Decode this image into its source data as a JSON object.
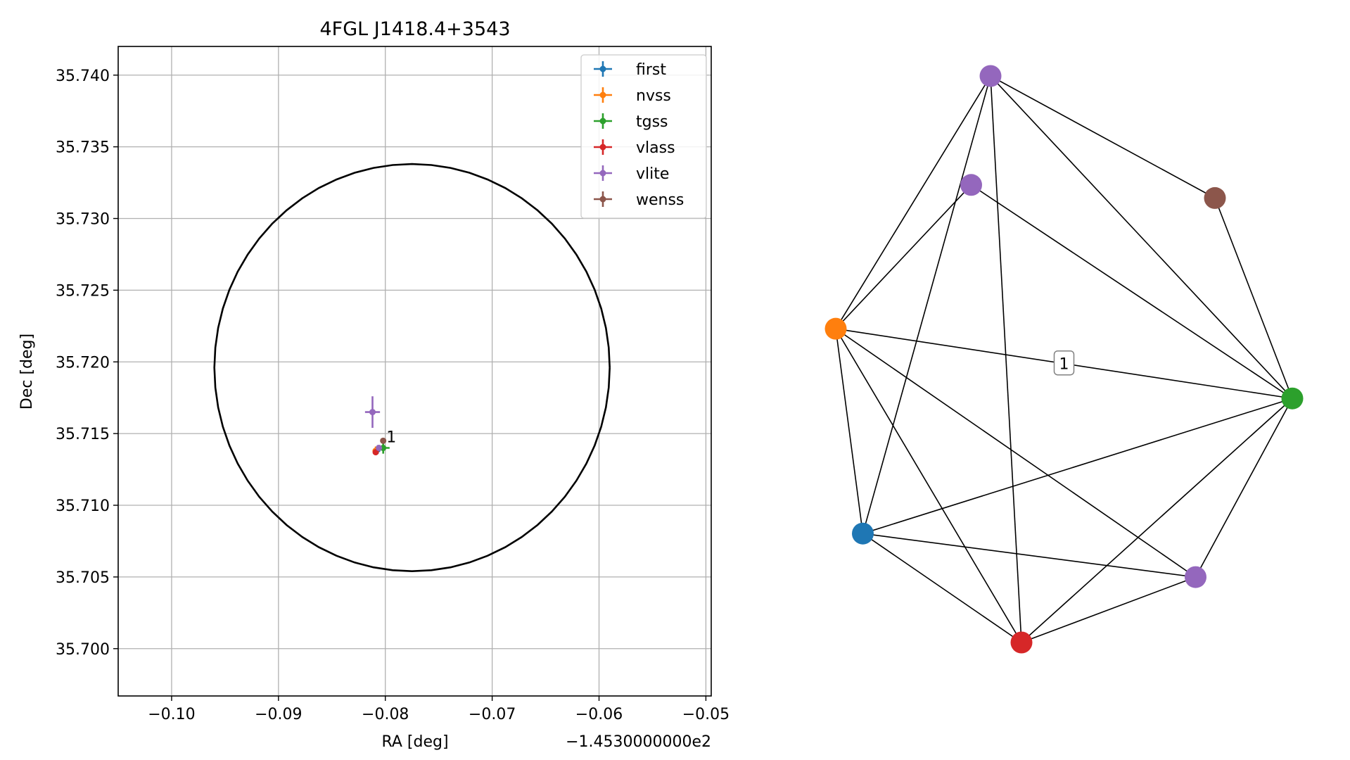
{
  "chart_data": [
    {
      "type": "scatter",
      "title": "4FGL J1418.4+3543",
      "xlabel": "RA [deg]",
      "ylabel": "Dec [deg]",
      "x_offset_text": "−1.4530000000e2",
      "xlim": [
        -0.105,
        -0.0495
      ],
      "ylim": [
        35.6967,
        35.742
      ],
      "x_ticks": [
        -0.1,
        -0.09,
        -0.08,
        -0.07,
        -0.06,
        -0.05
      ],
      "x_tick_labels": [
        "−0.10",
        "−0.09",
        "−0.08",
        "−0.07",
        "−0.06",
        "−0.05"
      ],
      "y_ticks": [
        35.7,
        35.705,
        35.71,
        35.715,
        35.72,
        35.725,
        35.73,
        35.735,
        35.74
      ],
      "y_tick_labels": [
        "35.700",
        "35.705",
        "35.710",
        "35.715",
        "35.720",
        "35.725",
        "35.730",
        "35.735",
        "35.740"
      ],
      "grid": true,
      "legend_position": "top-right",
      "circle": {
        "center": [
          -0.0775,
          35.7196
        ],
        "radius_x": 0.0185,
        "radius_y": 0.0142,
        "color": "#000000"
      },
      "series": [
        {
          "name": "first",
          "color": "#1f77b4",
          "points": [
            {
              "x": -0.0807,
              "y": 35.7139,
              "xerr": 0.0002,
              "yerr": 0.0003
            }
          ]
        },
        {
          "name": "nvss",
          "color": "#ff7f0e",
          "points": [
            {
              "x": -0.0809,
              "y": 35.7138,
              "xerr": 0.0003,
              "yerr": 0.0003
            }
          ]
        },
        {
          "name": "tgss",
          "color": "#2ca02c",
          "points": [
            {
              "x": -0.0802,
              "y": 35.714,
              "xerr": 0.0006,
              "yerr": 0.0004
            }
          ]
        },
        {
          "name": "vlass",
          "color": "#d62728",
          "points": [
            {
              "x": -0.0809,
              "y": 35.7137,
              "xerr": 0.0001,
              "yerr": 0.0001
            }
          ]
        },
        {
          "name": "vlite",
          "color": "#9467bd",
          "points": [
            {
              "x": -0.0812,
              "y": 35.7165,
              "xerr": 0.0007,
              "yerr": 0.0011
            },
            {
              "x": -0.0806,
              "y": 35.714,
              "xerr": 0.0002,
              "yerr": 0.0002
            }
          ]
        },
        {
          "name": "wenss",
          "color": "#8c564b",
          "points": [
            {
              "x": -0.0802,
              "y": 35.7145,
              "xerr": 0.0001,
              "yerr": 0.0002
            }
          ]
        }
      ],
      "annotation": {
        "text": "1",
        "x": -0.0799,
        "y": 35.7146
      }
    },
    {
      "type": "network",
      "nodes": [
        {
          "id": "vlite_a",
          "color": "#9467bd",
          "x": 0.22,
          "y": 1.0
        },
        {
          "id": "wenss",
          "color": "#8c564b",
          "x": 0.8,
          "y": 0.72
        },
        {
          "id": "vlite_b",
          "color": "#9467bd",
          "x": 0.17,
          "y": 0.75
        },
        {
          "id": "nvss",
          "color": "#ff7f0e",
          "x": -0.18,
          "y": 0.42
        },
        {
          "id": "tgss",
          "color": "#2ca02c",
          "x": 1.0,
          "y": 0.26
        },
        {
          "id": "first",
          "color": "#1f77b4",
          "x": -0.11,
          "y": -0.05
        },
        {
          "id": "vlite_c",
          "color": "#9467bd",
          "x": 0.75,
          "y": -0.15
        },
        {
          "id": "vlass",
          "color": "#d62728",
          "x": 0.3,
          "y": -0.3
        }
      ],
      "edges": [
        [
          "vlite_a",
          "wenss"
        ],
        [
          "vlite_a",
          "nvss"
        ],
        [
          "vlite_a",
          "tgss"
        ],
        [
          "vlite_a",
          "first"
        ],
        [
          "vlite_a",
          "vlass"
        ],
        [
          "wenss",
          "tgss"
        ],
        [
          "vlite_b",
          "nvss"
        ],
        [
          "vlite_b",
          "tgss"
        ],
        [
          "nvss",
          "tgss"
        ],
        [
          "nvss",
          "first"
        ],
        [
          "nvss",
          "vlite_c"
        ],
        [
          "nvss",
          "vlass"
        ],
        [
          "tgss",
          "first"
        ],
        [
          "tgss",
          "vlite_c"
        ],
        [
          "tgss",
          "vlass"
        ],
        [
          "first",
          "vlite_c"
        ],
        [
          "first",
          "vlass"
        ],
        [
          "vlite_c",
          "vlass"
        ]
      ],
      "edge_labels": [
        {
          "edge": [
            "nvss",
            "tgss"
          ],
          "text": "1"
        }
      ]
    }
  ]
}
